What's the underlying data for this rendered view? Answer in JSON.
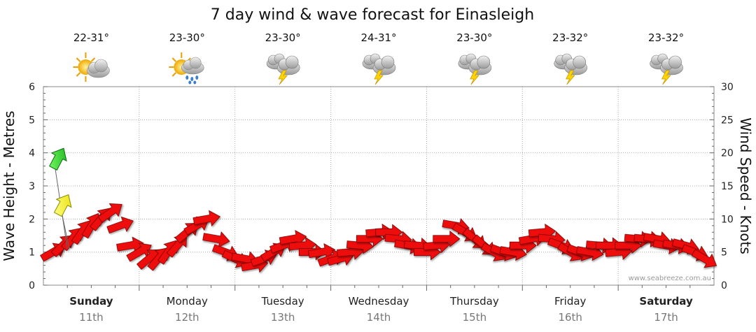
{
  "title": "7 day wind & wave forecast for Einasleigh",
  "days": [
    {
      "name": "Sunday",
      "date": "11th",
      "temp": "22-31°",
      "icon": "partly-cloudy-icon",
      "bold": true
    },
    {
      "name": "Monday",
      "date": "12th",
      "temp": "23-30°",
      "icon": "partly-cloudy-showers-icon",
      "bold": false
    },
    {
      "name": "Tuesday",
      "date": "13th",
      "temp": "23-30°",
      "icon": "thunderstorm-icon",
      "bold": false
    },
    {
      "name": "Wednesday",
      "date": "14th",
      "temp": "24-31°",
      "icon": "thunderstorm-icon",
      "bold": false
    },
    {
      "name": "Thursday",
      "date": "15th",
      "temp": "23-30°",
      "icon": "thunderstorm-icon",
      "bold": false
    },
    {
      "name": "Friday",
      "date": "16th",
      "temp": "23-32°",
      "icon": "thunderstorm-icon",
      "bold": false
    },
    {
      "name": "Saturday",
      "date": "17th",
      "temp": "23-32°",
      "icon": "thunderstorm-icon",
      "bold": true
    }
  ],
  "watermark": "www.seabreeze.com.au",
  "chart_data": {
    "type": "line",
    "title": "7 day wind & wave forecast for Einasleigh",
    "ylabel": "Wave Height - Metres",
    "y2label": "Wind Speed - Knots",
    "ylim": [
      0,
      6
    ],
    "y2lim": [
      0,
      30
    ],
    "yticks": [
      "0",
      "1",
      "2",
      "3",
      "4",
      "5",
      "6"
    ],
    "y2ticks": [
      "0",
      "5",
      "10",
      "15",
      "20",
      "25",
      "30"
    ],
    "categories": [
      "Sunday 11th",
      "Monday 12th",
      "Tuesday 13th",
      "Wednesday 14th",
      "Thursday 15th",
      "Friday 16th",
      "Saturday 17th"
    ],
    "grid": true,
    "wind_series": {
      "name": "Wind Speed",
      "x_days": [
        0.1,
        0.2,
        0.3,
        0.4,
        0.5,
        0.6,
        0.7,
        0.8,
        0.9,
        1.0,
        1.1,
        1.2,
        1.3,
        1.4,
        1.5,
        1.6,
        1.7,
        1.8,
        1.9,
        2.0,
        2.1,
        2.2,
        2.3,
        2.4,
        2.5,
        2.6,
        2.7,
        2.8,
        2.9,
        3.0,
        3.1,
        3.2,
        3.3,
        3.4,
        3.5,
        3.6,
        3.7,
        3.8,
        3.9,
        4.0,
        4.1,
        4.2,
        4.3,
        4.4,
        4.5,
        4.6,
        4.7,
        4.8,
        4.9,
        5.0,
        5.1,
        5.2,
        5.3,
        5.4,
        5.5,
        5.6,
        5.7,
        5.8,
        5.9,
        6.0,
        6.1,
        6.2,
        6.3,
        6.4,
        6.5,
        6.6,
        6.7,
        6.8,
        6.9
      ],
      "knots": [
        5,
        6,
        7,
        8,
        9,
        10,
        11,
        9,
        6,
        5,
        4,
        4,
        5,
        6,
        8,
        9,
        10,
        7,
        5,
        4,
        4,
        3,
        4,
        5,
        6,
        7,
        6,
        5,
        5,
        4,
        4,
        5,
        6,
        7,
        8,
        8,
        7,
        6,
        6,
        5,
        6,
        7,
        9,
        8,
        7,
        6,
        5,
        5,
        5,
        6,
        7,
        8,
        7,
        6,
        5,
        5,
        5,
        6,
        6,
        5,
        6,
        7,
        7,
        7,
        6,
        6,
        6,
        5,
        4
      ],
      "direction_deg": [
        60,
        45,
        40,
        35,
        30,
        40,
        55,
        70,
        80,
        60,
        50,
        40,
        35,
        40,
        50,
        60,
        80,
        100,
        110,
        115,
        100,
        80,
        70,
        60,
        70,
        80,
        85,
        90,
        80,
        70,
        75,
        85,
        95,
        90,
        85,
        90,
        95,
        100,
        95,
        90,
        85,
        90,
        100,
        120,
        130,
        130,
        120,
        110,
        100,
        90,
        80,
        85,
        95,
        110,
        120,
        110,
        100,
        95,
        90,
        85,
        90,
        95,
        95,
        100,
        100,
        100,
        105,
        110,
        120
      ]
    },
    "wave_series": [
      {
        "name": "Wave (green)",
        "x_days": 0.15,
        "metres": 3.8
      },
      {
        "name": "Wave (yellow)",
        "x_days": 0.2,
        "metres": 2.4
      }
    ]
  }
}
